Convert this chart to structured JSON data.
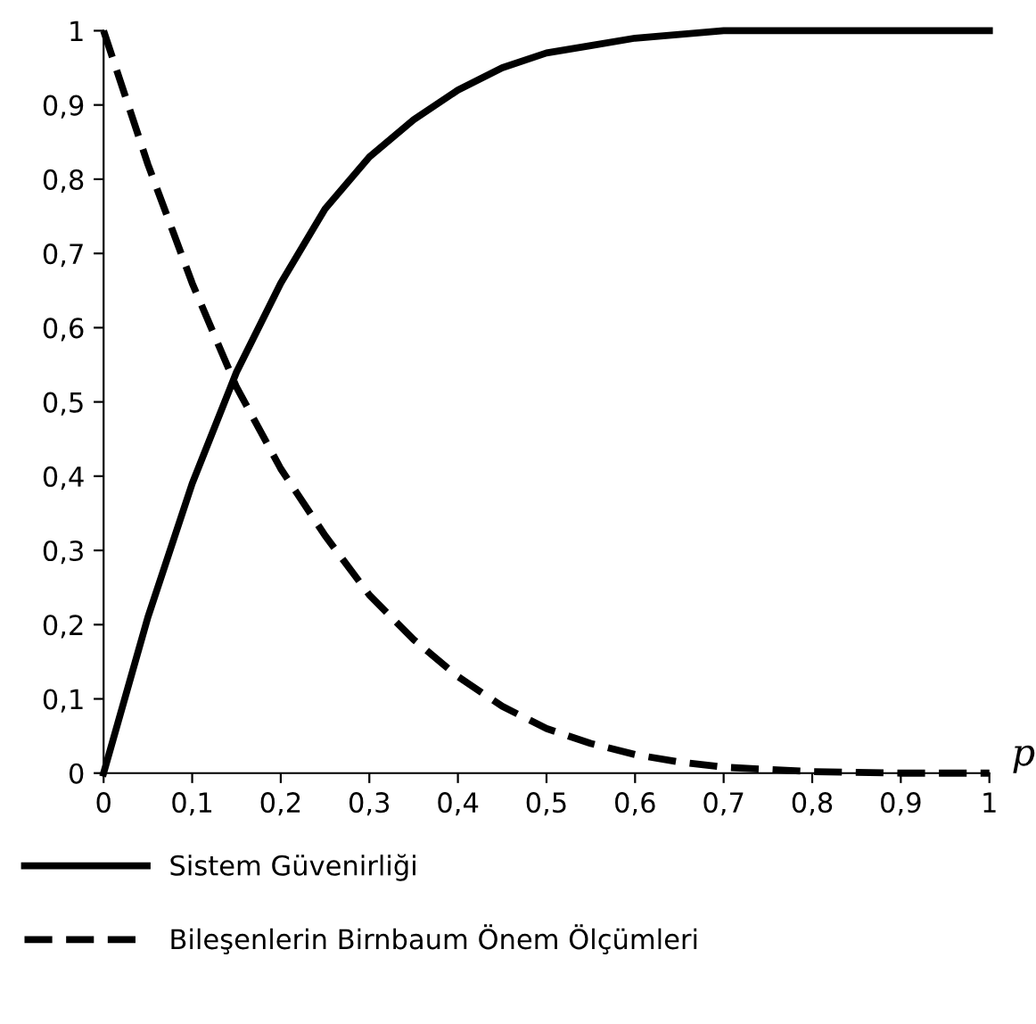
{
  "chart_data": {
    "type": "line",
    "xlabel": "p",
    "x": [
      0,
      0.05,
      0.1,
      0.15,
      0.2,
      0.25,
      0.3,
      0.35,
      0.4,
      0.45,
      0.5,
      0.55,
      0.6,
      0.65,
      0.7,
      0.8,
      0.9,
      1
    ],
    "series": [
      {
        "name": "Sistem Güvenirliği",
        "color": "#000000",
        "line_style": "solid",
        "values": [
          0,
          0.21,
          0.39,
          0.54,
          0.66,
          0.76,
          0.83,
          0.88,
          0.92,
          0.95,
          0.97,
          0.98,
          0.99,
          0.995,
          1,
          1,
          1,
          1
        ]
      },
      {
        "name": "Bileşenlerin Birnbaum Önem Ölçümleri",
        "color": "#000000",
        "line_style": "dashed",
        "values": [
          1,
          0.82,
          0.66,
          0.52,
          0.41,
          0.32,
          0.24,
          0.18,
          0.13,
          0.09,
          0.06,
          0.04,
          0.025,
          0.015,
          0.008,
          0.002,
          0,
          0
        ]
      }
    ],
    "xlim": [
      0,
      1
    ],
    "ylim": [
      0,
      1
    ],
    "xticks": [
      0,
      {
        "value": 0.1,
        "label": "0,1"
      },
      {
        "value": 0.2,
        "label": "0,2"
      },
      {
        "value": 0.3,
        "label": "0,3"
      },
      {
        "value": 0.4,
        "label": "0,4"
      },
      {
        "value": 0.5,
        "label": "0,5"
      },
      {
        "value": 0.6,
        "label": "0,6"
      },
      {
        "value": 0.7,
        "label": "0,7"
      },
      {
        "value": 0.8,
        "label": "0,8"
      },
      {
        "value": 0.9,
        "label": "0,9"
      },
      1
    ],
    "yticks": [
      0,
      {
        "value": 0.1,
        "label": "0,1"
      },
      {
        "value": 0.2,
        "label": "0,2"
      },
      {
        "value": 0.3,
        "label": "0,3"
      },
      {
        "value": 0.4,
        "label": "0,4"
      },
      {
        "value": 0.5,
        "label": "0,5"
      },
      {
        "value": 0.6,
        "label": "0,6"
      },
      {
        "value": 0.7,
        "label": "0,7"
      },
      {
        "value": 0.8,
        "label": "0,8"
      },
      {
        "value": 0.9,
        "label": "0,9"
      },
      1
    ],
    "grid": false,
    "legend": "bottom",
    "marker": "none"
  }
}
